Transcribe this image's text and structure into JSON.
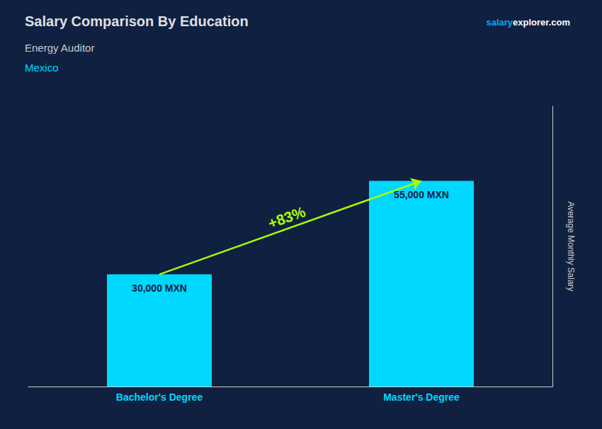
{
  "chart_data": {
    "type": "bar",
    "title": "Salary Comparison By Education",
    "subtitle": [
      "Energy Auditor",
      "Mexico"
    ],
    "ylabel": "Average Monthly Salary",
    "categories": [
      "Bachelor's Degree",
      "Master's Degree"
    ],
    "values": [
      30000,
      55000
    ],
    "value_labels": [
      "30,000 MXN",
      "55,000 MXN"
    ],
    "data_labels": true,
    "color": "#00d8ff",
    "ylim": [
      0,
      75000
    ],
    "tick_labels": "x",
    "grid": false,
    "annotations": [
      {
        "text": "+83%",
        "color": "#aaff00"
      },
      {
        "text": "salary",
        "color": "#00aaff"
      },
      {
        "text": "explorer.com",
        "color": "#ffffff"
      }
    ]
  }
}
